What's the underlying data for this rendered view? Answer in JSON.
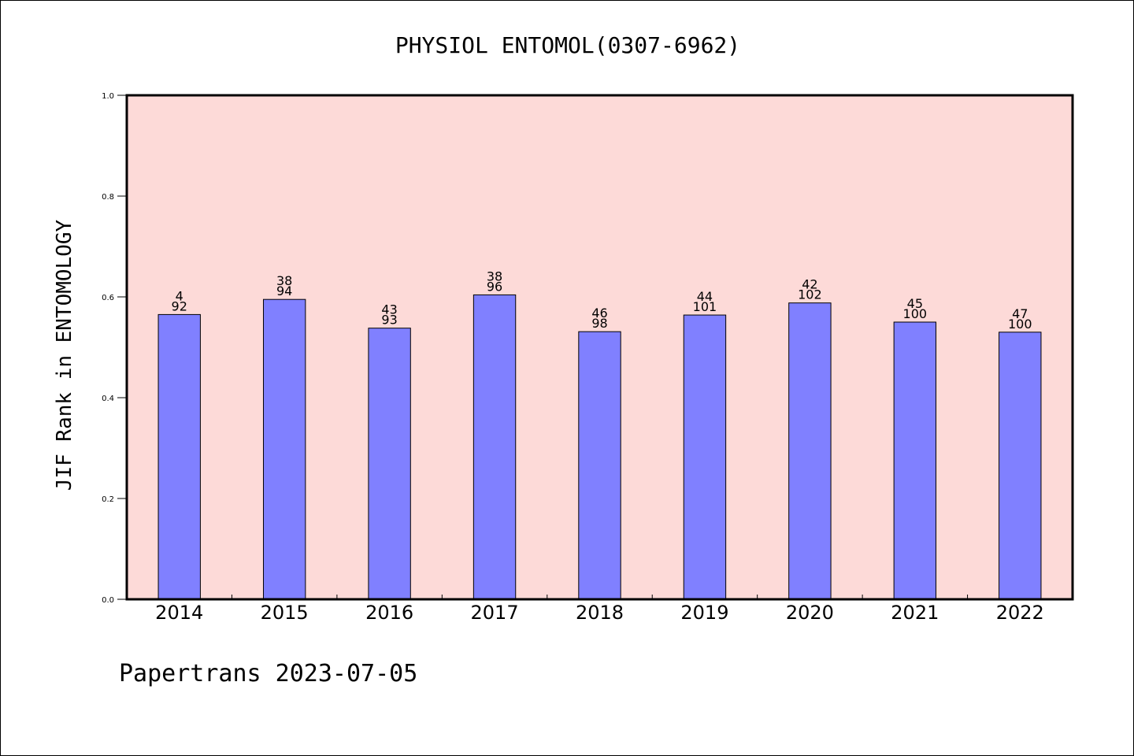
{
  "chart_data": {
    "type": "bar",
    "title": "PHYSIOL ENTOMOL(0307-6962)",
    "ylabel": "JIF Rank in ENTOMOLOGY",
    "xlabel": "",
    "categories": [
      "2014",
      "2015",
      "2016",
      "2017",
      "2018",
      "2019",
      "2020",
      "2021",
      "2022"
    ],
    "values": [
      0.565,
      0.595,
      0.538,
      0.604,
      0.531,
      0.564,
      0.588,
      0.55,
      0.53
    ],
    "labels_top": [
      "4",
      "38",
      "43",
      "38",
      "46",
      "44",
      "42",
      "45",
      "47"
    ],
    "labels_bottom": [
      "92",
      "94",
      "93",
      "96",
      "98",
      "101",
      "102",
      "100",
      "100"
    ],
    "ylim": [
      0,
      1.0
    ],
    "yticks": [
      "0.0",
      "0.2",
      "0.4",
      "0.6",
      "0.8",
      "1.0"
    ],
    "grid": false,
    "colors": {
      "bar": "#8080ff",
      "plot_background": "#fddad8",
      "bar_edge": "#000000"
    }
  },
  "footer": {
    "text": "Papertrans 2023-07-05"
  }
}
